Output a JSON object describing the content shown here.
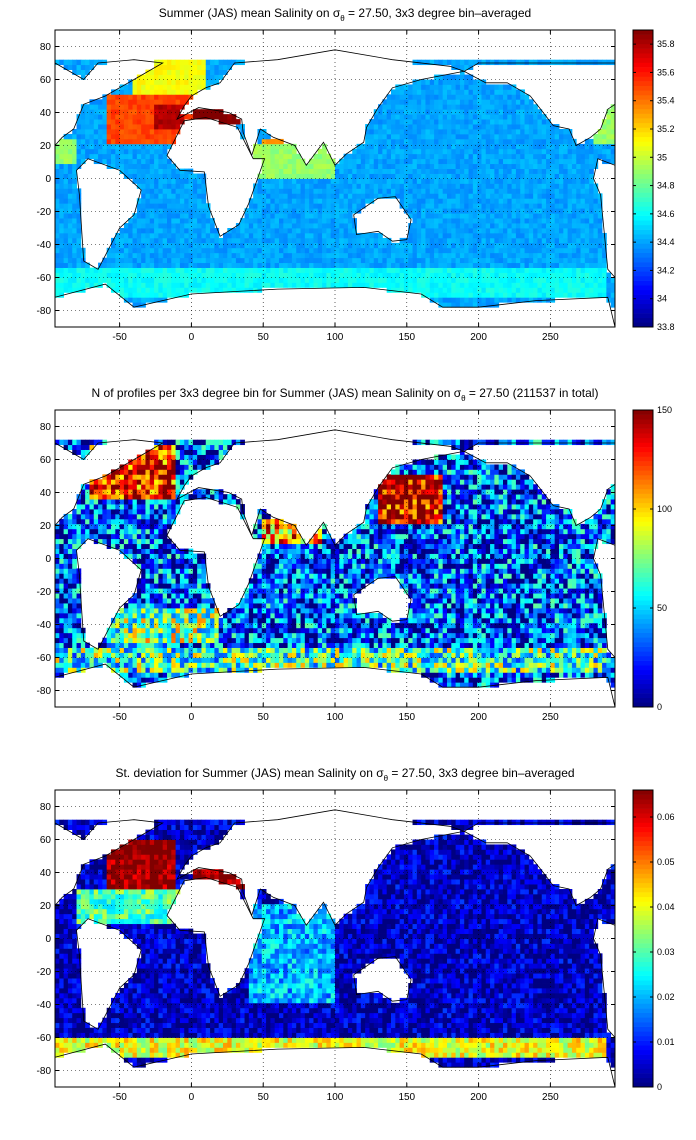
{
  "chart_data": [
    {
      "type": "heatmap",
      "title_parts": [
        "Summer (JAS) mean Salinity on ",
        "σ",
        "θ",
        " = 27.50, 3x3 degree bin–averaged"
      ],
      "xticks": [
        "-50",
        "0",
        "50",
        "100",
        "150",
        "200",
        "250"
      ],
      "yticks": [
        "80",
        "60",
        "40",
        "20",
        "0",
        "-20",
        "-40",
        "-60",
        "-80"
      ],
      "colorbar_ticks": [
        "35.8",
        "35.6",
        "35.4",
        "35.2",
        "35",
        "34.8",
        "34.6",
        "34.4",
        "34.2",
        "34",
        "33.8"
      ],
      "xlim": [
        -95,
        295
      ],
      "ylim": [
        -90,
        90
      ],
      "clim": [
        33.8,
        35.9
      ],
      "colormap": "jet",
      "background_value": 34.4,
      "regions": [
        {
          "lon": [
            -60,
            0
          ],
          "lat": [
            20,
            50
          ],
          "value": 35.5
        },
        {
          "lon": [
            -25,
            -5
          ],
          "lat": [
            30,
            45
          ],
          "value": 35.8
        },
        {
          "lon": [
            0,
            40
          ],
          "lat": [
            32,
            44
          ],
          "value": 35.9
        },
        {
          "lon": [
            -40,
            10
          ],
          "lat": [
            50,
            72
          ],
          "value": 35.1
        },
        {
          "lon": [
            50,
            75
          ],
          "lat": [
            10,
            25
          ],
          "value": 35.3
        },
        {
          "lon": [
            40,
            100
          ],
          "lat": [
            0,
            20
          ],
          "value": 34.9
        },
        {
          "lon": [
            -95,
            -80
          ],
          "lat": [
            10,
            25
          ],
          "value": 34.9
        },
        {
          "lon": [
            280,
            295
          ],
          "lat": [
            20,
            45
          ],
          "value": 34.9
        },
        {
          "lon": [
            -95,
            290
          ],
          "lat": [
            -72,
            -55
          ],
          "value": 34.6
        }
      ]
    },
    {
      "type": "heatmap",
      "title_parts": [
        "N of profiles per 3x3 degree bin for Summer (JAS) mean Salinity on ",
        "σ",
        "θ",
        " = 27.50 (211537 in total)"
      ],
      "xticks": [
        "-50",
        "0",
        "50",
        "100",
        "150",
        "200",
        "250"
      ],
      "yticks": [
        "80",
        "60",
        "40",
        "20",
        "0",
        "-20",
        "-40",
        "-60",
        "-80"
      ],
      "colorbar_ticks": [
        "150",
        "100",
        "50",
        "0"
      ],
      "xlim": [
        -95,
        295
      ],
      "ylim": [
        -90,
        90
      ],
      "clim": [
        0,
        150
      ],
      "colormap": "jet",
      "background_value": 30,
      "regions": [
        {
          "lon": [
            -70,
            -10
          ],
          "lat": [
            35,
            70
          ],
          "value": 130
        },
        {
          "lon": [
            130,
            175
          ],
          "lat": [
            20,
            50
          ],
          "value": 140
        },
        {
          "lon": [
            -95,
            290
          ],
          "lat": [
            -70,
            -55
          ],
          "value": 65
        },
        {
          "lon": [
            -60,
            20
          ],
          "lat": [
            -50,
            -30
          ],
          "value": 75
        },
        {
          "lon": [
            50,
            90
          ],
          "lat": [
            10,
            25
          ],
          "value": 110
        }
      ]
    },
    {
      "type": "heatmap",
      "title_parts": [
        "St. deviation for Summer (JAS) mean Salinity on ",
        "σ",
        "θ",
        " = 27.50, 3x3 degree bin–averaged"
      ],
      "xticks": [
        "-50",
        "0",
        "50",
        "100",
        "150",
        "200",
        "250"
      ],
      "yticks": [
        "80",
        "60",
        "40",
        "20",
        "0",
        "-20",
        "-40",
        "-60",
        "-80"
      ],
      "colorbar_ticks": [
        "0.06",
        "0.05",
        "0.04",
        "0.03",
        "0.02",
        "0.01",
        "0"
      ],
      "xlim": [
        -95,
        295
      ],
      "ylim": [
        -90,
        90
      ],
      "clim": [
        0,
        0.066
      ],
      "colormap": "jet",
      "background_value": 0.004,
      "regions": [
        {
          "lon": [
            -60,
            -10
          ],
          "lat": [
            30,
            60
          ],
          "value": 0.066
        },
        {
          "lon": [
            0,
            40
          ],
          "lat": [
            30,
            44
          ],
          "value": 0.066
        },
        {
          "lon": [
            -95,
            290
          ],
          "lat": [
            -72,
            -60
          ],
          "value": 0.04
        },
        {
          "lon": [
            -80,
            0
          ],
          "lat": [
            10,
            30
          ],
          "value": 0.03
        },
        {
          "lon": [
            40,
            100
          ],
          "lat": [
            -40,
            20
          ],
          "value": 0.02
        }
      ]
    }
  ]
}
